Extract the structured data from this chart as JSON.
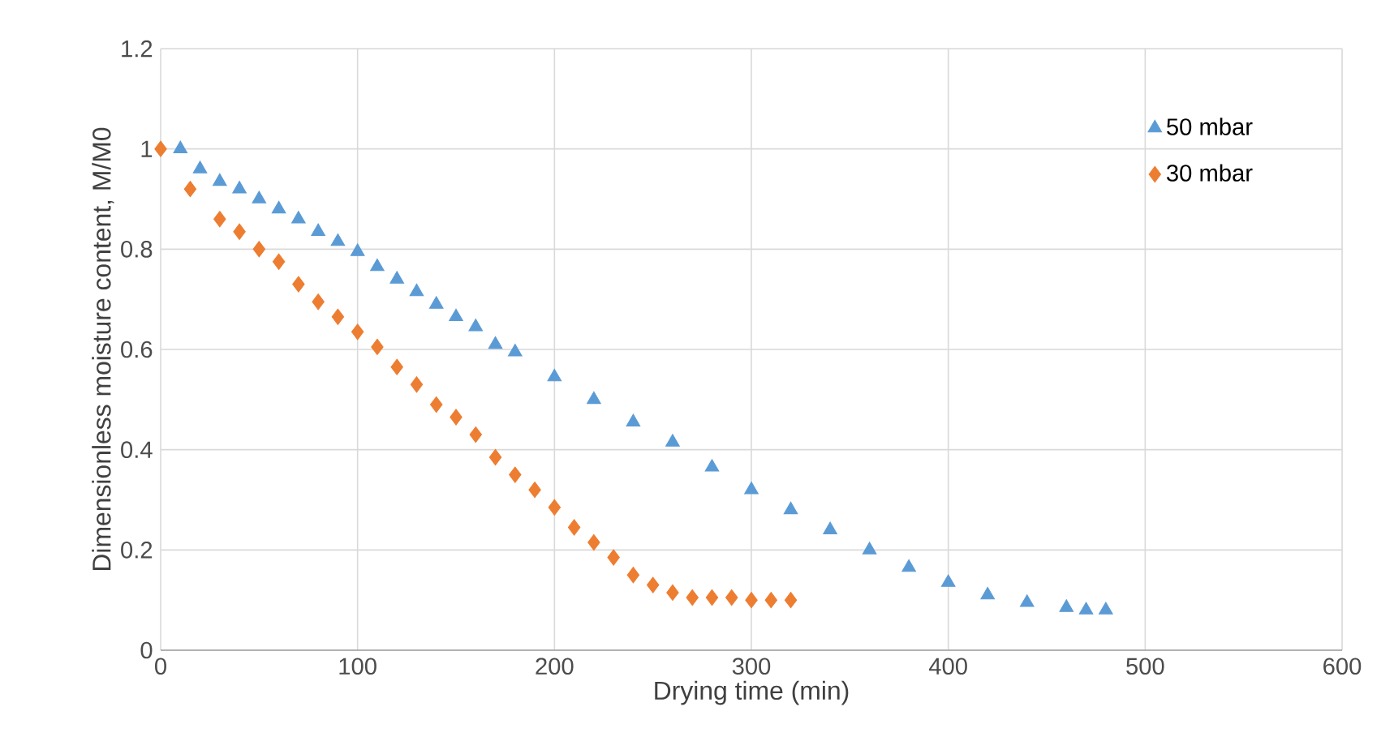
{
  "chart_data": {
    "type": "scatter",
    "xlabel": "Drying time (min)",
    "ylabel": "Dimensionless moisture content, M/M0",
    "xlim": [
      0,
      600
    ],
    "xticks": [
      0,
      100,
      200,
      300,
      400,
      500,
      600
    ],
    "ylim": [
      0,
      1.2
    ],
    "yticks": [
      0,
      0.2,
      0.4,
      0.6,
      0.8,
      1,
      1.2
    ],
    "grid": true,
    "legend": "top right",
    "series": [
      {
        "name": "50 mbar",
        "color": "#5b9bd5",
        "marker": "triangle",
        "x": [
          10,
          20,
          30,
          40,
          50,
          60,
          70,
          80,
          90,
          100,
          110,
          120,
          130,
          140,
          150,
          160,
          170,
          180,
          200,
          220,
          240,
          260,
          280,
          300,
          320,
          340,
          360,
          380,
          400,
          420,
          440,
          460,
          470,
          480
        ],
        "values": [
          1.0,
          0.96,
          0.935,
          0.92,
          0.9,
          0.88,
          0.86,
          0.835,
          0.815,
          0.795,
          0.765,
          0.74,
          0.715,
          0.69,
          0.665,
          0.645,
          0.61,
          0.595,
          0.545,
          0.5,
          0.455,
          0.415,
          0.365,
          0.32,
          0.28,
          0.24,
          0.2,
          0.165,
          0.135,
          0.11,
          0.095,
          0.085,
          0.08,
          0.08
        ]
      },
      {
        "name": "30 mbar",
        "color": "#ed7d31",
        "marker": "diamond",
        "x": [
          0,
          15,
          30,
          40,
          50,
          60,
          70,
          80,
          90,
          100,
          110,
          120,
          130,
          140,
          150,
          160,
          170,
          180,
          190,
          200,
          210,
          220,
          230,
          240,
          250,
          260,
          270,
          280,
          290,
          300,
          310,
          320
        ],
        "values": [
          1.0,
          0.92,
          0.86,
          0.835,
          0.8,
          0.775,
          0.73,
          0.695,
          0.665,
          0.635,
          0.605,
          0.565,
          0.53,
          0.49,
          0.465,
          0.43,
          0.385,
          0.35,
          0.32,
          0.285,
          0.245,
          0.215,
          0.185,
          0.15,
          0.13,
          0.115,
          0.105,
          0.105,
          0.105,
          0.1,
          0.1,
          0.1
        ]
      }
    ]
  }
}
